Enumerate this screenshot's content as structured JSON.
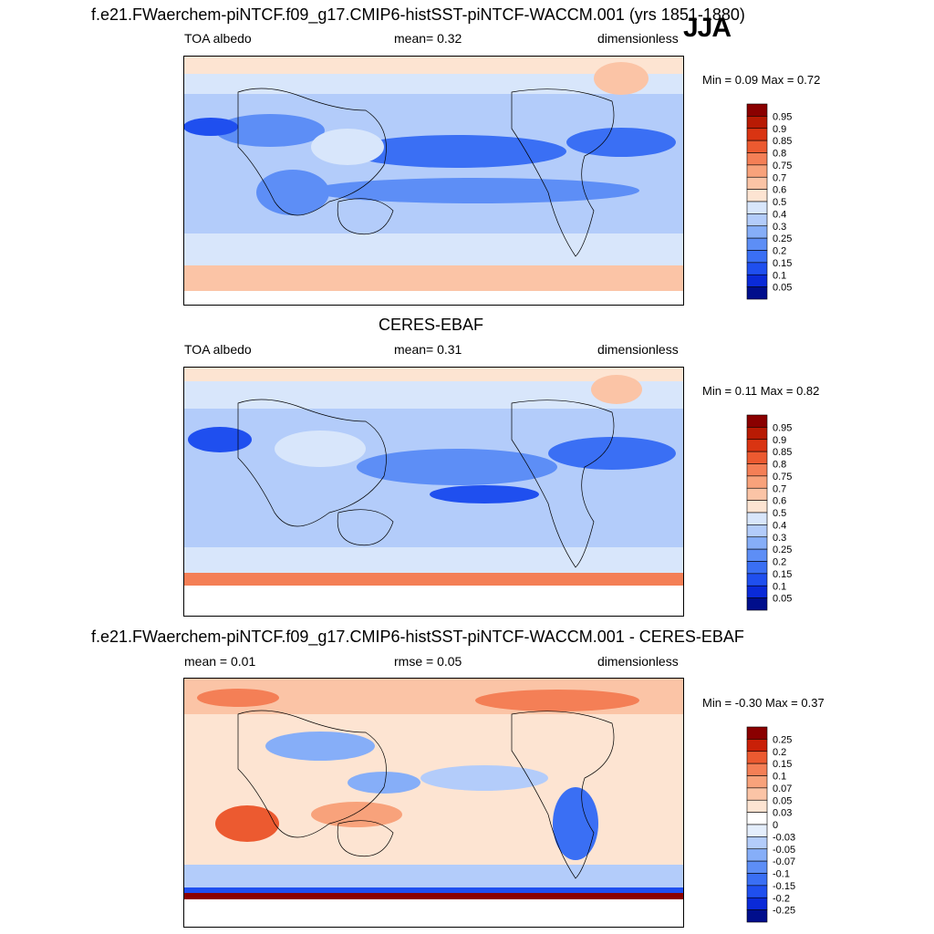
{
  "season": "JJA",
  "panels": [
    {
      "title": "f.e21.FWaerchem-piNTCF.f09_g17.CMIP6-histSST-piNTCF-WACCM.001 (yrs 1851-1880)",
      "left_label": "TOA albedo",
      "stat_label": "mean=   0.32",
      "units": "dimensionless",
      "minmax": "Min =   0.09 Max =   0.72"
    },
    {
      "title": "CERES-EBAF",
      "left_label": "TOA albedo",
      "stat_label": "mean=   0.31",
      "units": "dimensionless",
      "minmax": "Min =   0.11 Max =   0.82"
    },
    {
      "title": "f.e21.FWaerchem-piNTCF.f09_g17.CMIP6-histSST-piNTCF-WACCM.001 - CERES-EBAF",
      "left_label": "mean =   0.01",
      "stat_label": "rmse =   0.05",
      "units": "dimensionless",
      "minmax": "Min =  -0.30 Max =   0.37"
    }
  ],
  "chart_data": [
    {
      "type": "heatmap",
      "variable": "TOA albedo",
      "units": "dimensionless",
      "mean": 0.32,
      "min": 0.09,
      "max": 0.72,
      "colorbar_levels": [
        "0.05",
        "0.1",
        "0.15",
        "0.2",
        "0.25",
        "0.3",
        "0.4",
        "0.5",
        "0.6",
        "0.7",
        "0.75",
        "0.8",
        "0.85",
        "0.9",
        "0.95"
      ],
      "colorbar_colors": [
        "#000e8c",
        "#0a2ad8",
        "#1f4fef",
        "#3a6ff4",
        "#5d8ef6",
        "#86aef8",
        "#b3ccfa",
        "#d8e6fb",
        "#fde4d2",
        "#fbc4a6",
        "#f8a27b",
        "#f47f56",
        "#ec5a30",
        "#d93412",
        "#b81a04",
        "#8a0000"
      ]
    },
    {
      "type": "heatmap",
      "variable": "TOA albedo",
      "units": "dimensionless",
      "mean": 0.31,
      "min": 0.11,
      "max": 0.82,
      "colorbar_levels": [
        "0.05",
        "0.1",
        "0.15",
        "0.2",
        "0.25",
        "0.3",
        "0.4",
        "0.5",
        "0.6",
        "0.7",
        "0.75",
        "0.8",
        "0.85",
        "0.9",
        "0.95"
      ],
      "colorbar_colors": [
        "#000e8c",
        "#0a2ad8",
        "#1f4fef",
        "#3a6ff4",
        "#5d8ef6",
        "#86aef8",
        "#b3ccfa",
        "#d8e6fb",
        "#fde4d2",
        "#fbc4a6",
        "#f8a27b",
        "#f47f56",
        "#ec5a30",
        "#d93412",
        "#b81a04",
        "#8a0000"
      ]
    },
    {
      "type": "heatmap",
      "variable": "TOA albedo difference",
      "units": "dimensionless",
      "mean": 0.01,
      "rmse": 0.05,
      "min": -0.3,
      "max": 0.37,
      "colorbar_levels": [
        "-0.25",
        "-0.2",
        "-0.15",
        "-0.1",
        "-0.07",
        "-0.05",
        "-0.03",
        "0",
        "0.03",
        "0.05",
        "0.07",
        "0.1",
        "0.15",
        "0.2",
        "0.25"
      ],
      "colorbar_colors": [
        "#000e8c",
        "#0a2ad8",
        "#1f4fef",
        "#3a6ff4",
        "#5d8ef6",
        "#86aef8",
        "#b3ccfa",
        "#e4eefc",
        "#ffffff",
        "#fde4d2",
        "#fbc4a6",
        "#f8a27b",
        "#f47f56",
        "#ec5a30",
        "#c92008",
        "#8a0000"
      ]
    }
  ]
}
